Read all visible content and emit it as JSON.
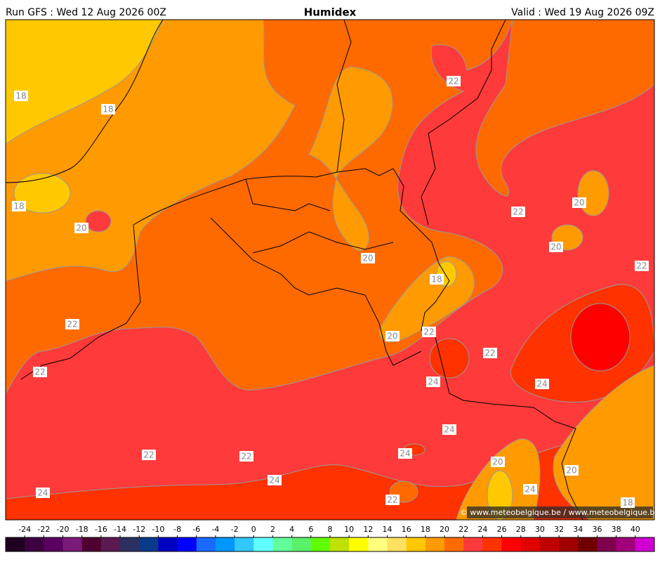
{
  "header": {
    "run": "Run GFS : Wed 12 Aug 2026 00Z",
    "title": "Humidex",
    "valid": "Valid : Wed 19 Aug 2026 09Z"
  },
  "contour_labels": [
    "18",
    "18",
    "18",
    "20",
    "22",
    "22",
    "22",
    "22",
    "20",
    "20",
    "22",
    "20",
    "18",
    "20",
    "22",
    "22",
    "24",
    "24",
    "24",
    "24",
    "22",
    "22",
    "24",
    "20",
    "20",
    "24",
    "22",
    "24",
    "18"
  ],
  "credit": "© www.meteobelgique.be / www.meteobelgique.be",
  "colorbar": {
    "ticks": [
      -24,
      -22,
      -20,
      -18,
      -16,
      -14,
      -12,
      -10,
      -8,
      -6,
      -4,
      -2,
      0,
      2,
      4,
      6,
      8,
      10,
      12,
      14,
      16,
      18,
      20,
      22,
      24,
      26,
      28,
      30,
      32,
      34,
      36,
      38,
      40
    ],
    "colors": [
      "#200020",
      "#3d0040",
      "#5a0060",
      "#7a1a7a",
      "#500030",
      "#5a1a50",
      "#2a3060",
      "#0a3a8a",
      "#0000c0",
      "#0000ff",
      "#1a6aff",
      "#0096ff",
      "#30c8ff",
      "#60ffff",
      "#60ff9a",
      "#5af06a",
      "#60ff00",
      "#c0e000",
      "#ffff00",
      "#ffff80",
      "#ffe060",
      "#ffc800",
      "#ff9a00",
      "#ff6a00",
      "#ff3a3a",
      "#ff3200",
      "#ff0000",
      "#e00000",
      "#c00000",
      "#a00000",
      "#700000",
      "#800050",
      "#a0007a",
      "#d000d0"
    ]
  }
}
